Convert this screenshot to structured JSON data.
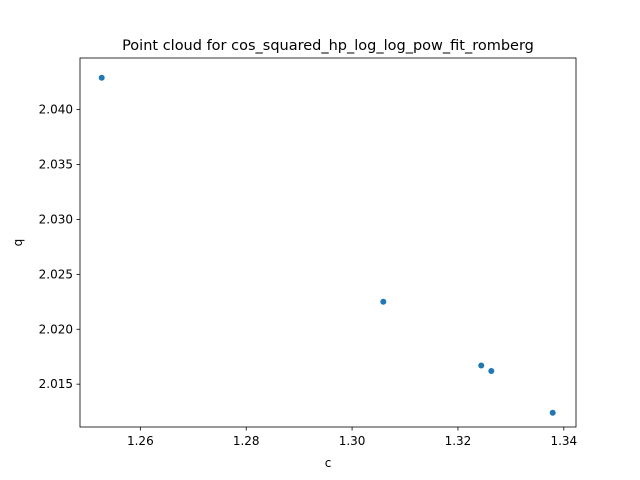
{
  "chart_data": {
    "type": "scatter",
    "title": "Point cloud for cos_squared_hp_log_log_pow_fit_romberg",
    "xlabel": "c",
    "ylabel": "q",
    "xlim": [
      1.2486,
      1.3423
    ],
    "ylim": [
      2.0111,
      2.0447
    ],
    "grid": false,
    "point_color": "#1f77b4",
    "x_ticks": [
      {
        "value": 1.26,
        "label": "1.26"
      },
      {
        "value": 1.28,
        "label": "1.28"
      },
      {
        "value": 1.3,
        "label": "1.30"
      },
      {
        "value": 1.32,
        "label": "1.32"
      },
      {
        "value": 1.34,
        "label": "1.34"
      }
    ],
    "y_ticks": [
      {
        "value": 2.015,
        "label": "2.015"
      },
      {
        "value": 2.02,
        "label": "2.020"
      },
      {
        "value": 2.025,
        "label": "2.025"
      },
      {
        "value": 2.03,
        "label": "2.030"
      },
      {
        "value": 2.035,
        "label": "2.035"
      },
      {
        "value": 2.04,
        "label": "2.040"
      }
    ],
    "points": [
      {
        "x": 1.2527,
        "y": 2.0429
      },
      {
        "x": 1.3059,
        "y": 2.0225
      },
      {
        "x": 1.3244,
        "y": 2.0167
      },
      {
        "x": 1.3263,
        "y": 2.0162
      },
      {
        "x": 1.3379,
        "y": 2.0124
      }
    ]
  }
}
